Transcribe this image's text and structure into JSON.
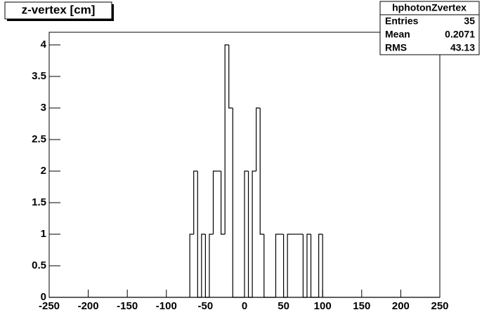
{
  "chart_data": {
    "type": "histogram",
    "title": "z-vertex [cm]",
    "bins": [
      -70,
      -65,
      -60,
      -55,
      -50,
      -45,
      -40,
      -35,
      -30,
      -25,
      -20,
      -15,
      -10,
      -5,
      0,
      5,
      10,
      15,
      20,
      25,
      30,
      35,
      40,
      45,
      50,
      55,
      60,
      65,
      70,
      75,
      80,
      85,
      90,
      95,
      100
    ],
    "values": [
      1,
      2,
      0,
      1,
      0,
      1,
      2,
      2,
      1,
      4,
      3,
      0,
      0,
      0,
      2,
      0,
      2,
      3,
      1,
      0,
      0,
      0,
      1,
      1,
      0,
      1,
      1,
      1,
      1,
      0,
      1,
      0,
      0,
      1
    ],
    "color": "#000000",
    "xlim": [
      -250,
      250
    ],
    "xticks": [
      -250,
      -200,
      -150,
      -100,
      -50,
      0,
      50,
      100,
      150,
      200,
      250
    ],
    "ylim": [
      0,
      4.2
    ],
    "yticks": [
      0,
      0.5,
      1,
      1.5,
      2,
      2.5,
      3,
      3.5,
      4
    ],
    "stats": {
      "title": "hphotonZvertex",
      "rows": [
        [
          "Entries",
          35
        ],
        [
          "Mean",
          0.2071
        ],
        [
          "RMS",
          43.13
        ]
      ]
    }
  }
}
